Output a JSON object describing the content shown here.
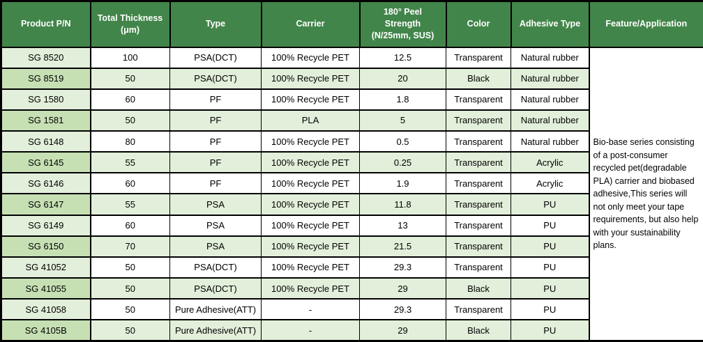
{
  "table": {
    "columns": [
      "Product P/N",
      "Total Thickness\n(μm)",
      "Type",
      "Carrier",
      "180° Peel\nStrength\n(N/25mm, SUS)",
      "Color",
      "Adhesive Type",
      "Feature/Application"
    ],
    "rows": [
      [
        "SG 8520",
        "100",
        "PSA(DCT)",
        "100% Recycle PET",
        "12.5",
        "Transparent",
        "Natural rubber"
      ],
      [
        "SG 8519",
        "50",
        "PSA(DCT)",
        "100% Recycle PET",
        "20",
        "Black",
        "Natural rubber"
      ],
      [
        "SG 1580",
        "60",
        "PF",
        "100% Recycle PET",
        "1.8",
        "Transparent",
        "Natural rubber"
      ],
      [
        "SG 1581",
        "50",
        "PF",
        "PLA",
        "5",
        "Transparent",
        "Natural rubber"
      ],
      [
        "SG 6148",
        "80",
        "PF",
        "100% Recycle PET",
        "0.5",
        "Transparent",
        "Natural rubber"
      ],
      [
        "SG 6145",
        "55",
        "PF",
        "100% Recycle PET",
        "0.25",
        "Transparent",
        "Acrylic"
      ],
      [
        "SG 6146",
        "60",
        "PF",
        "100% Recycle PET",
        "1.9",
        "Transparent",
        "Acrylic"
      ],
      [
        "SG 6147",
        "55",
        "PSA",
        "100% Recycle PET",
        "11.8",
        "Transparent",
        "PU"
      ],
      [
        "SG 6149",
        "60",
        "PSA",
        "100% Recycle PET",
        "13",
        "Transparent",
        "PU"
      ],
      [
        "SG 6150",
        "70",
        "PSA",
        "100% Recycle PET",
        "21.5",
        "Transparent",
        "PU"
      ],
      [
        "SG 41052",
        "50",
        "PSA(DCT)",
        "100% Recycle PET",
        "29.3",
        "Transparent",
        "PU"
      ],
      [
        "SG 41055",
        "50",
        "PSA(DCT)",
        "100% Recycle PET",
        "29",
        "Black",
        "PU"
      ],
      [
        "SG 41058",
        "50",
        "Pure Adhesive(ATT)",
        "-",
        "29.3",
        "Transparent",
        "PU"
      ],
      [
        "SG 4105B",
        "50",
        "Pure Adhesive(ATT)",
        "-",
        "29",
        "Black",
        "PU"
      ]
    ],
    "feature_text": "Bio-base series consisting of a post-consumer recycled pet(degradable PLA) carrier and  biobased adhesive,This series will not only meet your tape requirements, but also help with your sustainability plans."
  },
  "colors": {
    "header_bg": "#42854A",
    "header_text": "#FFFFFF",
    "band_bg": "#E2EFDA",
    "first_col_bg": "#E2EFDA",
    "first_col_band_bg": "#C6E0B4",
    "border": "#000000"
  }
}
